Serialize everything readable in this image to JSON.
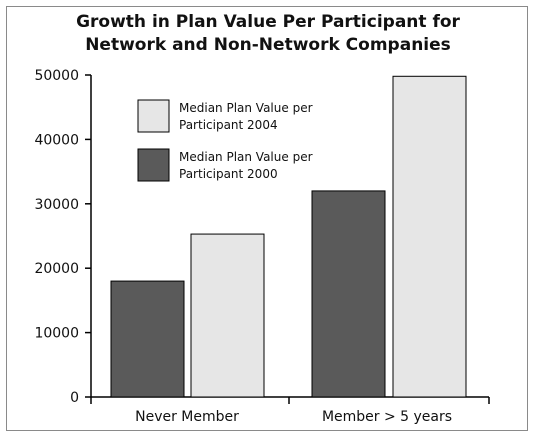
{
  "chart_data": {
    "type": "bar",
    "title_line1": "Growth in Plan Value Per Participant for",
    "title_line2": "Network and Non-Network Companies",
    "categories": [
      "Never Member",
      "Member > 5 years"
    ],
    "series": [
      {
        "name": "Median Plan Value per Participant 2000",
        "name_line1": "Median Plan Value per",
        "name_line2": "Participant 2000",
        "color": "#5a5a5a",
        "values": [
          18000,
          32000
        ]
      },
      {
        "name": "Median Plan Value per Participant 2004",
        "name_line1": "Median Plan Value per",
        "name_line2": "Participant 2004",
        "color": "#e6e6e6",
        "values": [
          25300,
          49800
        ]
      }
    ],
    "legend_order": [
      1,
      0
    ],
    "ylim": [
      0,
      50000
    ],
    "yticks": [
      "0",
      "10000",
      "20000",
      "30000",
      "40000",
      "50000"
    ],
    "xlabel": "",
    "ylabel": "",
    "grid": false,
    "legend_position": "top-left"
  }
}
